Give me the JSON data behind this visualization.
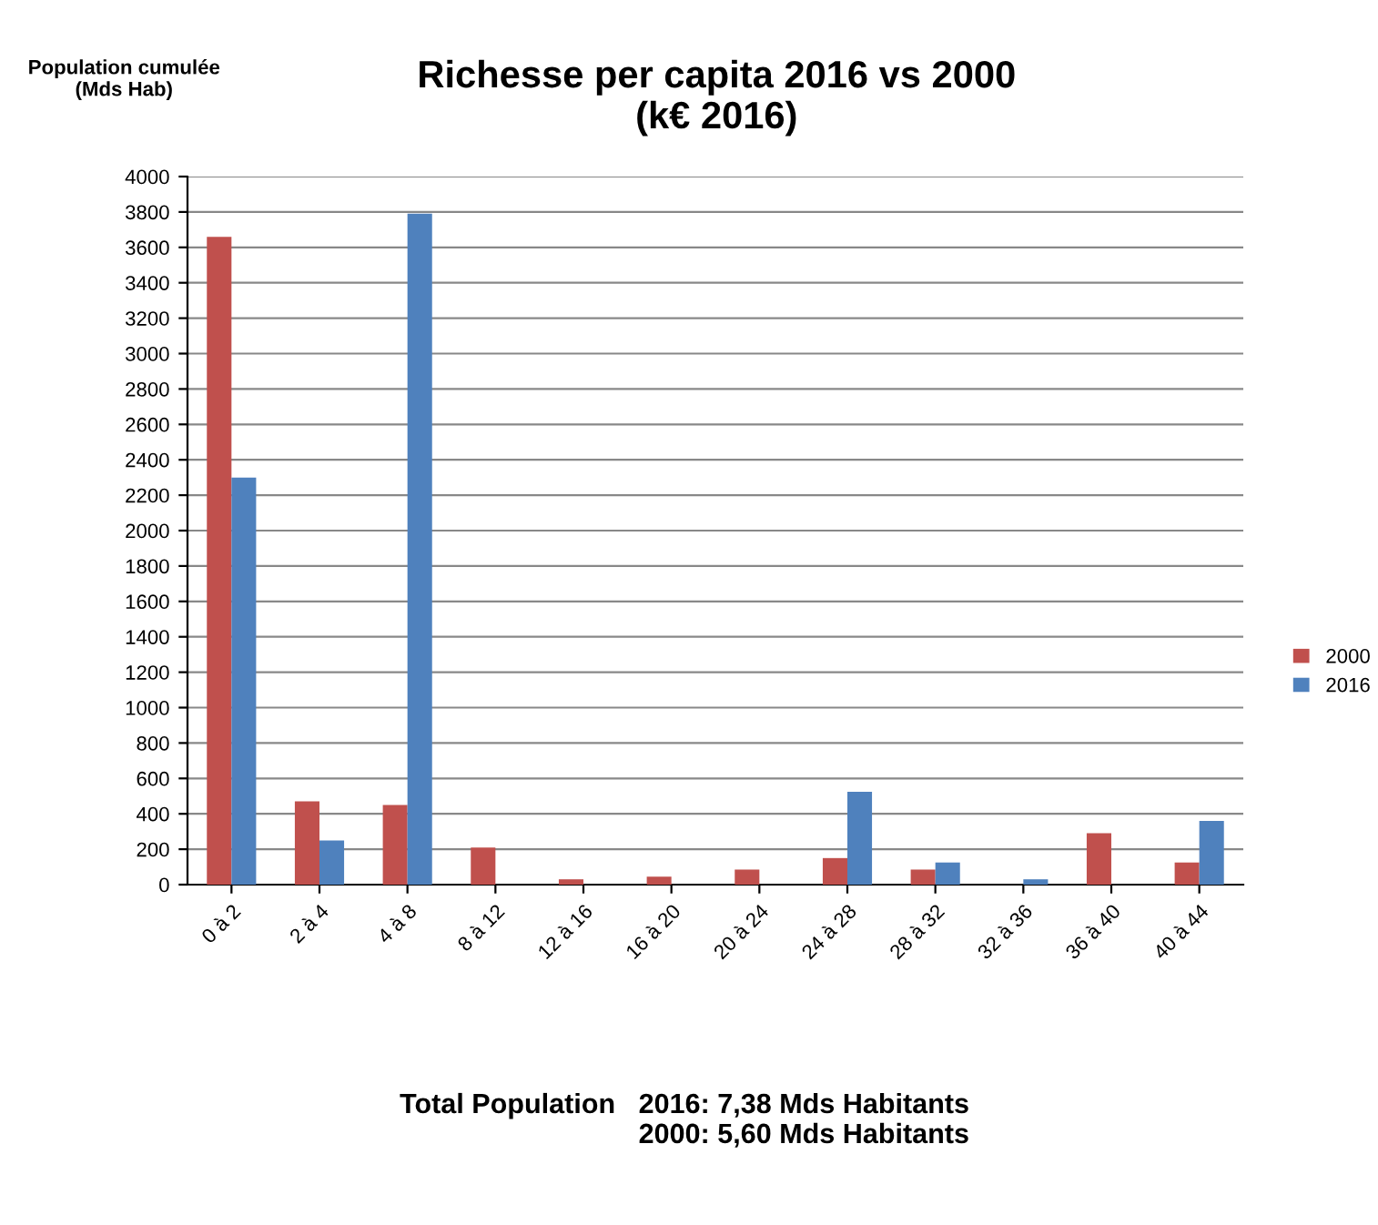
{
  "chart_data": {
    "type": "bar",
    "title": "Richesse per capita 2016 vs 2000\n(k€ 2016)",
    "ylabel": "Population cumulée\n(Mds Hab)",
    "categories": [
      "0 à 2",
      "2 à 4",
      "4 à 8",
      "8 à 12",
      "12 à 16",
      "16 à 20",
      "20 à 24",
      "24 à 28",
      "28 à 32",
      "32 à 36",
      "36 à 40",
      "40 à 44"
    ],
    "series": [
      {
        "name": "2000",
        "color": "#c0504d",
        "values": [
          3660,
          470,
          450,
          210,
          30,
          45,
          85,
          150,
          85,
          0,
          290,
          125
        ]
      },
      {
        "name": "2016",
        "color": "#4f81bd",
        "values": [
          2300,
          250,
          3790,
          0,
          0,
          0,
          0,
          525,
          125,
          30,
          0,
          360
        ]
      }
    ],
    "ylim": [
      0,
      4000
    ],
    "yticks": [
      0,
      200,
      400,
      600,
      800,
      1000,
      1200,
      1400,
      1600,
      1800,
      2000,
      2200,
      2400,
      2600,
      2800,
      3000,
      3200,
      3400,
      3600,
      3800,
      4000
    ],
    "grid": "y",
    "legend": "right",
    "annotations": [
      "Total Population   2016: 7,38 Mds Habitants\n2000: 5,60 Mds Habitants"
    ]
  }
}
